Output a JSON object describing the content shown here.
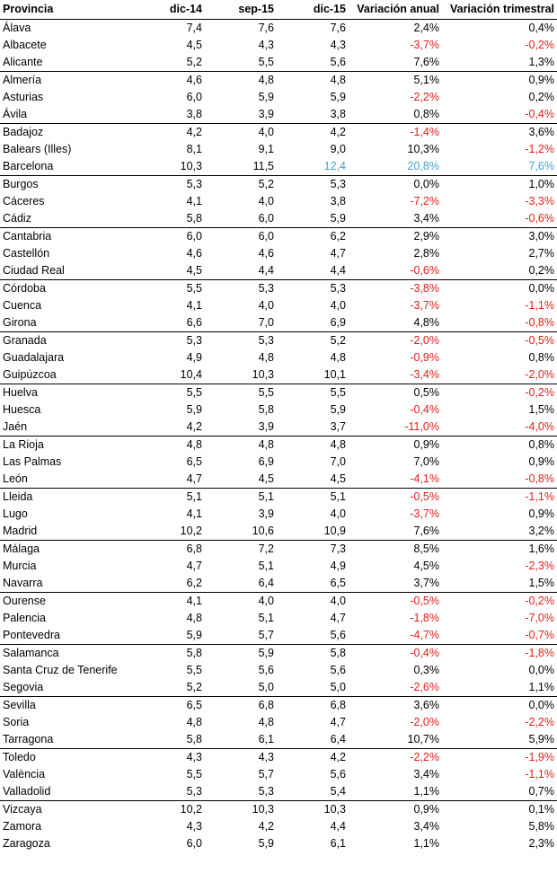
{
  "headers": [
    "Provincia",
    "dic-14",
    "sep-15",
    "dic-15",
    "Variación anual",
    "Variación trimestral"
  ],
  "rows": [
    [
      "Álava",
      "7,4",
      "7,6",
      "7,6",
      "2,4%",
      "0,4%"
    ],
    [
      "Albacete",
      "4,5",
      "4,3",
      "4,3",
      "-3,7%",
      "-0,2%"
    ],
    [
      "Alicante",
      "5,2",
      "5,5",
      "5,6",
      "7,6%",
      "1,3%"
    ],
    [
      "Almería",
      "4,6",
      "4,8",
      "4,8",
      "5,1%",
      "0,9%"
    ],
    [
      "Asturias",
      "6,0",
      "5,9",
      "5,9",
      "-2,2%",
      "0,2%"
    ],
    [
      "Ávila",
      "3,8",
      "3,9",
      "3,8",
      "0,8%",
      "-0,4%"
    ],
    [
      "Badajoz",
      "4,2",
      "4,0",
      "4,2",
      "-1,4%",
      "3,6%"
    ],
    [
      "Balears (Illes)",
      "8,1",
      "9,1",
      "9,0",
      "10,3%",
      "-1,2%"
    ],
    [
      "Barcelona",
      "10,3",
      "11,5",
      "12,4",
      "20,8%",
      "7,6%"
    ],
    [
      "Burgos",
      "5,3",
      "5,2",
      "5,3",
      "0,0%",
      "1,0%"
    ],
    [
      "Cáceres",
      "4,1",
      "4,0",
      "3,8",
      "-7,2%",
      "-3,3%"
    ],
    [
      "Cádiz",
      "5,8",
      "6,0",
      "5,9",
      "3,4%",
      "-0,6%"
    ],
    [
      "Cantabria",
      "6,0",
      "6,0",
      "6,2",
      "2,9%",
      "3,0%"
    ],
    [
      "Castellón",
      "4,6",
      "4,6",
      "4,7",
      "2,8%",
      "2,7%"
    ],
    [
      "Ciudad Real",
      "4,5",
      "4,4",
      "4,4",
      "-0,6%",
      "0,2%"
    ],
    [
      "Córdoba",
      "5,5",
      "5,3",
      "5,3",
      "-3,8%",
      "0,0%"
    ],
    [
      "Cuenca",
      "4,1",
      "4,0",
      "4,0",
      "-3,7%",
      "-1,1%"
    ],
    [
      "Girona",
      "6,6",
      "7,0",
      "6,9",
      "4,8%",
      "-0,8%"
    ],
    [
      "Granada",
      "5,3",
      "5,3",
      "5,2",
      "-2,0%",
      "-0,5%"
    ],
    [
      "Guadalajara",
      "4,9",
      "4,8",
      "4,8",
      "-0,9%",
      "0,8%"
    ],
    [
      "Guipúzcoa",
      "10,4",
      "10,3",
      "10,1",
      "-3,4%",
      "-2,0%"
    ],
    [
      "Huelva",
      "5,5",
      "5,5",
      "5,5",
      "0,5%",
      "-0,2%"
    ],
    [
      "Huesca",
      "5,9",
      "5,8",
      "5,9",
      "-0,4%",
      "1,5%"
    ],
    [
      "Jaén",
      "4,2",
      "3,9",
      "3,7",
      "-11,0%",
      "-4,0%"
    ],
    [
      "La Rioja",
      "4,8",
      "4,8",
      "4,8",
      "0,9%",
      "0,8%"
    ],
    [
      "Las Palmas",
      "6,5",
      "6,9",
      "7,0",
      "7,0%",
      "0,9%"
    ],
    [
      "León",
      "4,7",
      "4,5",
      "4,5",
      "-4,1%",
      "-0,8%"
    ],
    [
      "Lleida",
      "5,1",
      "5,1",
      "5,1",
      "-0,5%",
      "-1,1%"
    ],
    [
      "Lugo",
      "4,1",
      "3,9",
      "4,0",
      "-3,7%",
      "0,9%"
    ],
    [
      "Madrid",
      "10,2",
      "10,6",
      "10,9",
      "7,6%",
      "3,2%"
    ],
    [
      "Málaga",
      "6,8",
      "7,2",
      "7,3",
      "8,5%",
      "1,6%"
    ],
    [
      "Murcia",
      "4,7",
      "5,1",
      "4,9",
      "4,5%",
      "-2,3%"
    ],
    [
      "Navarra",
      "6,2",
      "6,4",
      "6,5",
      "3,7%",
      "1,5%"
    ],
    [
      "Ourense",
      "4,1",
      "4,0",
      "4,0",
      "-0,5%",
      "-0,2%"
    ],
    [
      "Palencia",
      "4,8",
      "5,1",
      "4,7",
      "-1,8%",
      "-7,0%"
    ],
    [
      "Pontevedra",
      "5,9",
      "5,7",
      "5,6",
      "-4,7%",
      "-0,7%"
    ],
    [
      "Salamanca",
      "5,8",
      "5,9",
      "5,8",
      "-0,4%",
      "-1,8%"
    ],
    [
      "Santa Cruz de Tenerife",
      "5,5",
      "5,6",
      "5,6",
      "0,3%",
      "0,0%"
    ],
    [
      "Segovia",
      "5,2",
      "5,0",
      "5,0",
      "-2,6%",
      "1,1%"
    ],
    [
      "Sevilla",
      "6,5",
      "6,8",
      "6,8",
      "3,6%",
      "0,0%"
    ],
    [
      "Soria",
      "4,8",
      "4,8",
      "4,7",
      "-2,0%",
      "-2,2%"
    ],
    [
      "Tarragona",
      "5,8",
      "6,1",
      "6,4",
      "10,7%",
      "5,9%"
    ],
    [
      "Toledo",
      "4,3",
      "4,3",
      "4,2",
      "-2,2%",
      "-1,9%"
    ],
    [
      "València",
      "5,5",
      "5,7",
      "5,6",
      "3,4%",
      "-1,1%"
    ],
    [
      "Valladolid",
      "5,3",
      "5,3",
      "5,4",
      "1,1%",
      "0,7%"
    ],
    [
      "Vizcaya",
      "10,2",
      "10,3",
      "10,3",
      "0,9%",
      "0,1%"
    ],
    [
      "Zamora",
      "4,3",
      "4,2",
      "4,4",
      "3,4%",
      "5,8%"
    ],
    [
      "Zaragoza",
      "6,0",
      "5,9",
      "6,1",
      "1,1%",
      "2,3%"
    ]
  ],
  "highlight_row": "Barcelona",
  "colors": {
    "negative": "#e0201b",
    "highlight": "#4a9fd0",
    "text": "#000000"
  }
}
